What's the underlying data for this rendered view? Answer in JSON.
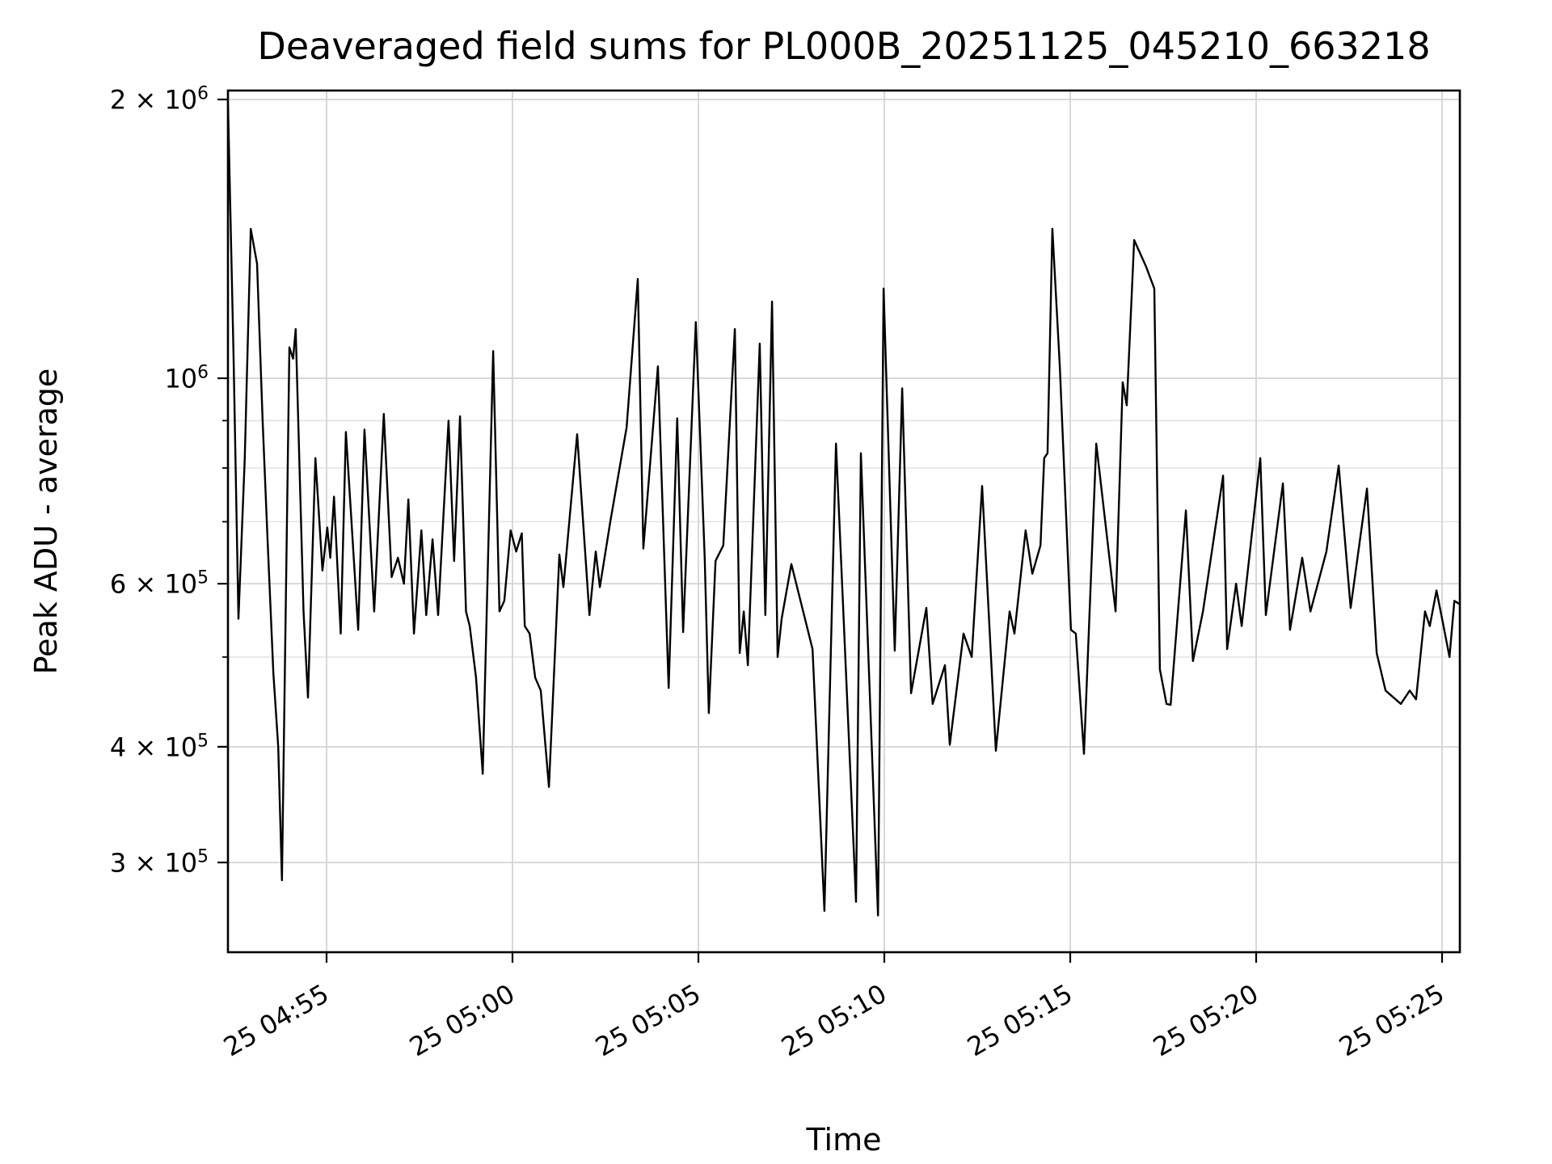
{
  "chart": {
    "title": "Deaveraged field sums for PL000B_20251125_045210_663218",
    "xlabel": "Time",
    "ylabel": "Peak ADU - average",
    "line_color": "#000000",
    "background_color": "#ffffff",
    "major_grid_color": "#d4d4d4",
    "minor_grid_color": "#e0e0e0",
    "spine_color": "#000000"
  },
  "chart_data": {
    "type": "line",
    "title": "Deaveraged field sums for PL000B_20251125_045210_663218",
    "xlabel": "Time",
    "ylabel": "Peak ADU - average",
    "yscale": "log",
    "grid": "both-major-and-minor",
    "legend": "none",
    "x_unit_minutes_after": "25 04:52",
    "xlim": [
      0.348,
      33.478
    ],
    "ylim": [
      240000,
      2045000
    ],
    "x_ticks": [
      {
        "t": 3,
        "label": "25 04:55"
      },
      {
        "t": 8,
        "label": "25 05:00"
      },
      {
        "t": 13,
        "label": "25 05:05"
      },
      {
        "t": 18,
        "label": "25 05:10"
      },
      {
        "t": 23,
        "label": "25 05:15"
      },
      {
        "t": 28,
        "label": "25 05:20"
      },
      {
        "t": 33,
        "label": "25 05:25"
      }
    ],
    "y_ticks_major": [
      {
        "v": 2000000,
        "mant": "2 × 10",
        "exp": "6"
      },
      {
        "v": 1000000,
        "mant": "10",
        "exp": "6"
      },
      {
        "v": 600000,
        "mant": "6 × 10",
        "exp": "5"
      },
      {
        "v": 400000,
        "mant": "4 × 10",
        "exp": "5"
      },
      {
        "v": 300000,
        "mant": "3 × 10",
        "exp": "5"
      }
    ],
    "y_ticks_minor": [
      900000,
      800000,
      700000,
      500000
    ],
    "points": [
      [
        0.35,
        1970000
      ],
      [
        0.5,
        1050000
      ],
      [
        0.63,
        550000
      ],
      [
        0.8,
        820000
      ],
      [
        0.96,
        1450000
      ],
      [
        1.13,
        1330000
      ],
      [
        1.28,
        900000
      ],
      [
        1.42,
        660000
      ],
      [
        1.57,
        480000
      ],
      [
        1.7,
        400000
      ],
      [
        1.8,
        287000
      ],
      [
        2.0,
        1080000
      ],
      [
        2.1,
        1050000
      ],
      [
        2.17,
        1130000
      ],
      [
        2.38,
        560000
      ],
      [
        2.5,
        452000
      ],
      [
        2.7,
        820000
      ],
      [
        2.89,
        620000
      ],
      [
        3.02,
        690000
      ],
      [
        3.1,
        640000
      ],
      [
        3.2,
        745000
      ],
      [
        3.38,
        530000
      ],
      [
        3.52,
        875000
      ],
      [
        3.7,
        670000
      ],
      [
        3.85,
        535000
      ],
      [
        4.02,
        880000
      ],
      [
        4.28,
        560000
      ],
      [
        4.54,
        915000
      ],
      [
        4.75,
        610000
      ],
      [
        4.92,
        640000
      ],
      [
        5.08,
        600000
      ],
      [
        5.2,
        740000
      ],
      [
        5.35,
        530000
      ],
      [
        5.55,
        685000
      ],
      [
        5.68,
        555000
      ],
      [
        5.85,
        670000
      ],
      [
        6.0,
        555000
      ],
      [
        6.28,
        900000
      ],
      [
        6.43,
        635000
      ],
      [
        6.59,
        910000
      ],
      [
        6.75,
        560000
      ],
      [
        6.85,
        540000
      ],
      [
        7.02,
        475000
      ],
      [
        7.2,
        374000
      ],
      [
        7.48,
        1070000
      ],
      [
        7.65,
        560000
      ],
      [
        7.78,
        575000
      ],
      [
        7.95,
        685000
      ],
      [
        8.1,
        650000
      ],
      [
        8.25,
        680000
      ],
      [
        8.33,
        540000
      ],
      [
        8.46,
        530000
      ],
      [
        8.61,
        475000
      ],
      [
        8.76,
        460000
      ],
      [
        8.98,
        362000
      ],
      [
        9.26,
        645000
      ],
      [
        9.37,
        595000
      ],
      [
        9.74,
        870000
      ],
      [
        10.07,
        555000
      ],
      [
        10.24,
        650000
      ],
      [
        10.35,
        595000
      ],
      [
        10.63,
        700000
      ],
      [
        11.07,
        885000
      ],
      [
        11.37,
        1280000
      ],
      [
        11.52,
        655000
      ],
      [
        11.91,
        1030000
      ],
      [
        12.2,
        463000
      ],
      [
        12.43,
        905000
      ],
      [
        12.59,
        532000
      ],
      [
        12.93,
        1150000
      ],
      [
        13.17,
        640000
      ],
      [
        13.28,
        435000
      ],
      [
        13.46,
        635000
      ],
      [
        13.67,
        660000
      ],
      [
        13.98,
        1130000
      ],
      [
        14.11,
        505000
      ],
      [
        14.22,
        560000
      ],
      [
        14.33,
        490000
      ],
      [
        14.65,
        1090000
      ],
      [
        14.8,
        555000
      ],
      [
        14.98,
        1210000
      ],
      [
        15.13,
        500000
      ],
      [
        15.24,
        550000
      ],
      [
        15.5,
        630000
      ],
      [
        16.07,
        510000
      ],
      [
        16.39,
        266000
      ],
      [
        16.7,
        850000
      ],
      [
        17.24,
        272000
      ],
      [
        17.37,
        830000
      ],
      [
        17.83,
        263000
      ],
      [
        17.98,
        1250000
      ],
      [
        18.28,
        508000
      ],
      [
        18.48,
        975000
      ],
      [
        18.72,
        457000
      ],
      [
        19.13,
        565000
      ],
      [
        19.3,
        445000
      ],
      [
        19.63,
        490000
      ],
      [
        19.76,
        402000
      ],
      [
        20.13,
        530000
      ],
      [
        20.35,
        500000
      ],
      [
        20.63,
        765000
      ],
      [
        21.0,
        396000
      ],
      [
        21.37,
        560000
      ],
      [
        21.5,
        530000
      ],
      [
        21.8,
        685000
      ],
      [
        21.98,
        615000
      ],
      [
        22.2,
        660000
      ],
      [
        22.3,
        820000
      ],
      [
        22.39,
        830000
      ],
      [
        22.52,
        1450000
      ],
      [
        22.72,
        1030000
      ],
      [
        23.02,
        535000
      ],
      [
        23.15,
        530000
      ],
      [
        23.37,
        393000
      ],
      [
        23.7,
        850000
      ],
      [
        24.22,
        560000
      ],
      [
        24.41,
        990000
      ],
      [
        24.52,
        935000
      ],
      [
        24.72,
        1410000
      ],
      [
        25.04,
        1320000
      ],
      [
        25.26,
        1250000
      ],
      [
        25.41,
        485000
      ],
      [
        25.59,
        445000
      ],
      [
        25.7,
        444000
      ],
      [
        26.11,
        720000
      ],
      [
        26.3,
        495000
      ],
      [
        26.57,
        560000
      ],
      [
        27.11,
        785000
      ],
      [
        27.22,
        510000
      ],
      [
        27.46,
        600000
      ],
      [
        27.61,
        540000
      ],
      [
        28.11,
        820000
      ],
      [
        28.26,
        555000
      ],
      [
        28.72,
        770000
      ],
      [
        28.91,
        535000
      ],
      [
        29.24,
        640000
      ],
      [
        29.46,
        560000
      ],
      [
        29.89,
        650000
      ],
      [
        30.22,
        805000
      ],
      [
        30.54,
        565000
      ],
      [
        30.98,
        760000
      ],
      [
        31.24,
        505000
      ],
      [
        31.48,
        460000
      ],
      [
        31.89,
        445000
      ],
      [
        32.13,
        460000
      ],
      [
        32.3,
        450000
      ],
      [
        32.54,
        560000
      ],
      [
        32.67,
        540000
      ],
      [
        32.85,
        590000
      ],
      [
        33.02,
        545000
      ],
      [
        33.2,
        500000
      ],
      [
        33.33,
        575000
      ],
      [
        33.48,
        570000
      ]
    ]
  }
}
